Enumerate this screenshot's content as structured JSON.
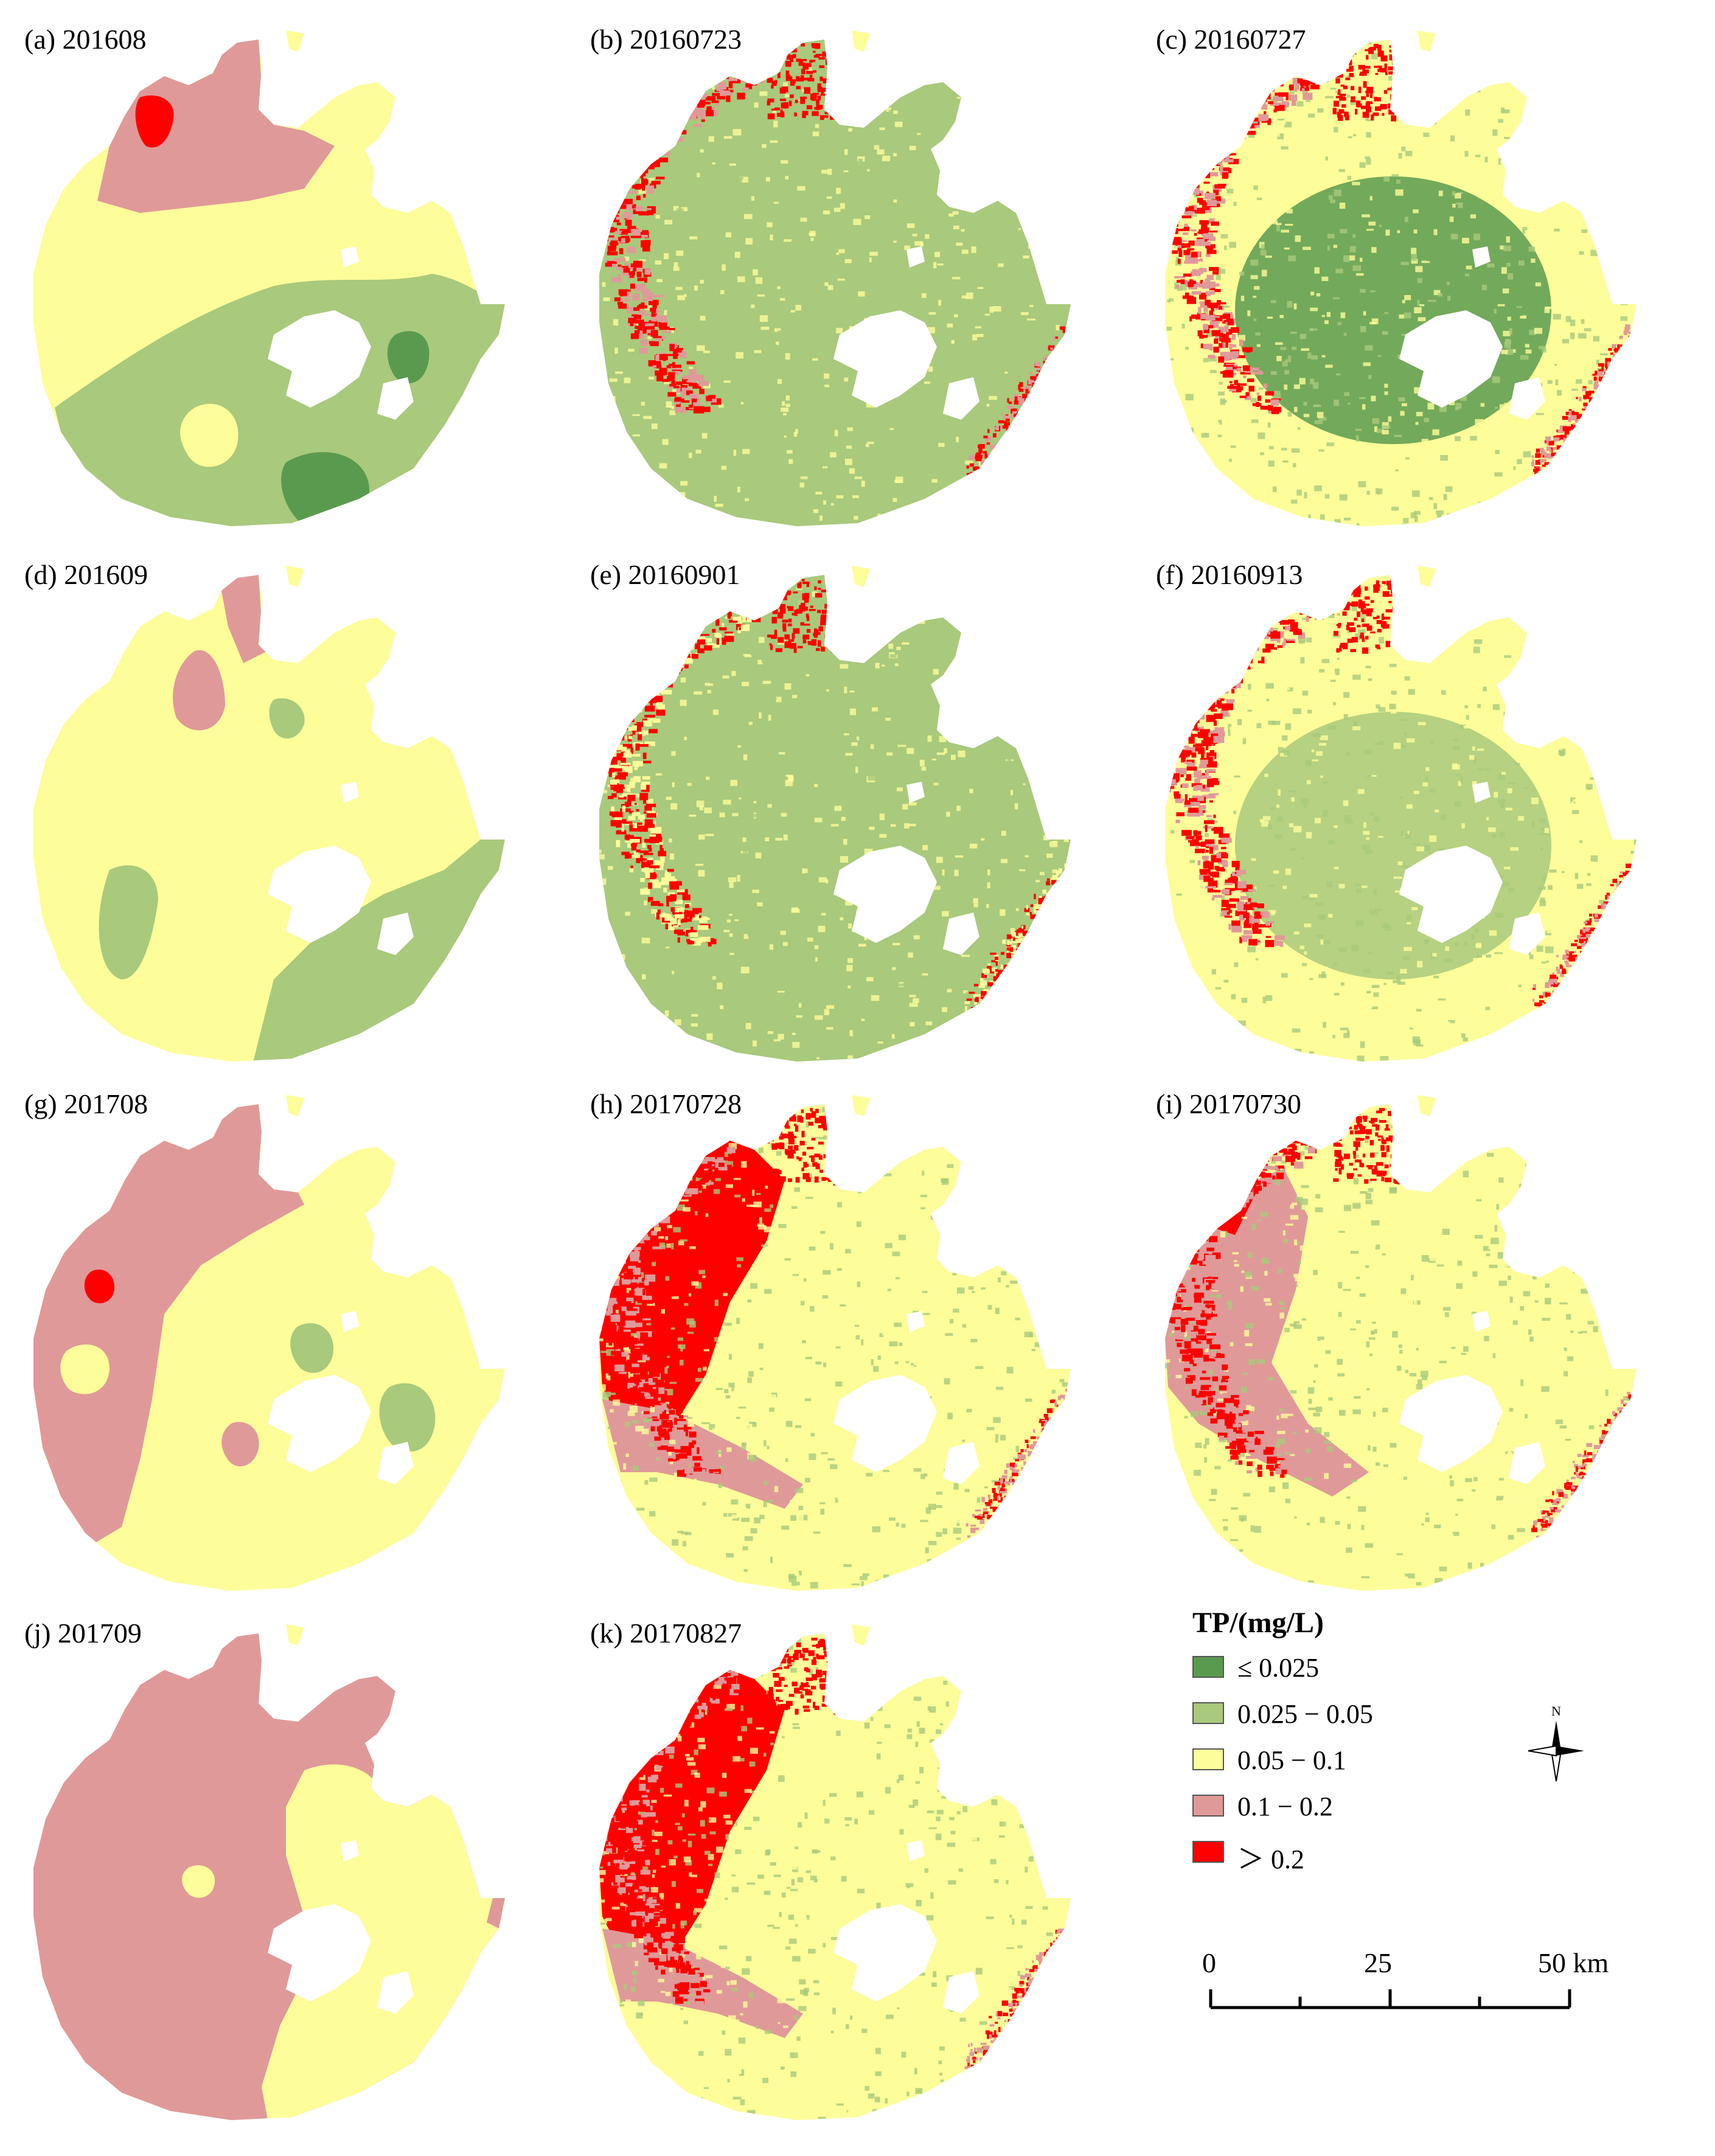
{
  "colors": {
    "le_0_025": "#5a9a4f",
    "c_0_025_0_05": "#a9c97c",
    "c_0_05_0_1": "#fdfd9a",
    "c_0_1_0_2": "#e09999",
    "gt_0_2": "#ff0000"
  },
  "panels": [
    {
      "label": "(a) 201608",
      "kind": "interpolated",
      "base": "c_0_05_0_1"
    },
    {
      "label": "(b) 20160723",
      "kind": "satellite",
      "base": "c_0_025_0_05"
    },
    {
      "label": "(c) 20160727",
      "kind": "satellite",
      "base": "c_0_05_0_1"
    },
    {
      "label": "(d) 201609",
      "kind": "interpolated",
      "base": "c_0_05_0_1"
    },
    {
      "label": "(e) 20160901",
      "kind": "satellite",
      "base": "c_0_025_0_05"
    },
    {
      "label": "(f) 20160913",
      "kind": "satellite",
      "base": "c_0_05_0_1"
    },
    {
      "label": "(g) 201708",
      "kind": "interpolated",
      "base": "c_0_05_0_1"
    },
    {
      "label": "(h) 20170728",
      "kind": "satellite",
      "base": "c_0_05_0_1"
    },
    {
      "label": "(i) 20170730",
      "kind": "satellite",
      "base": "c_0_05_0_1"
    },
    {
      "label": "(j) 201709",
      "kind": "interpolated",
      "base": "c_0_1_0_2"
    },
    {
      "label": "(k) 20170827",
      "kind": "satellite",
      "base": "c_0_05_0_1"
    }
  ],
  "legend": {
    "title": "TP/(mg/L)",
    "items": [
      {
        "label": "≤ 0.025",
        "color": "#5a9a4f"
      },
      {
        "label": "0.025 − 0.05",
        "color": "#a9c97c"
      },
      {
        "label": "0.05 − 0.1",
        "color": "#fdfd9a"
      },
      {
        "label": "0.1 − 0.2",
        "color": "#e09999"
      },
      {
        "label": "＞ 0.2",
        "color": "#ff0000"
      }
    ]
  },
  "north_label": "N",
  "scale": {
    "labels": [
      "0",
      "25",
      "50 km"
    ]
  }
}
